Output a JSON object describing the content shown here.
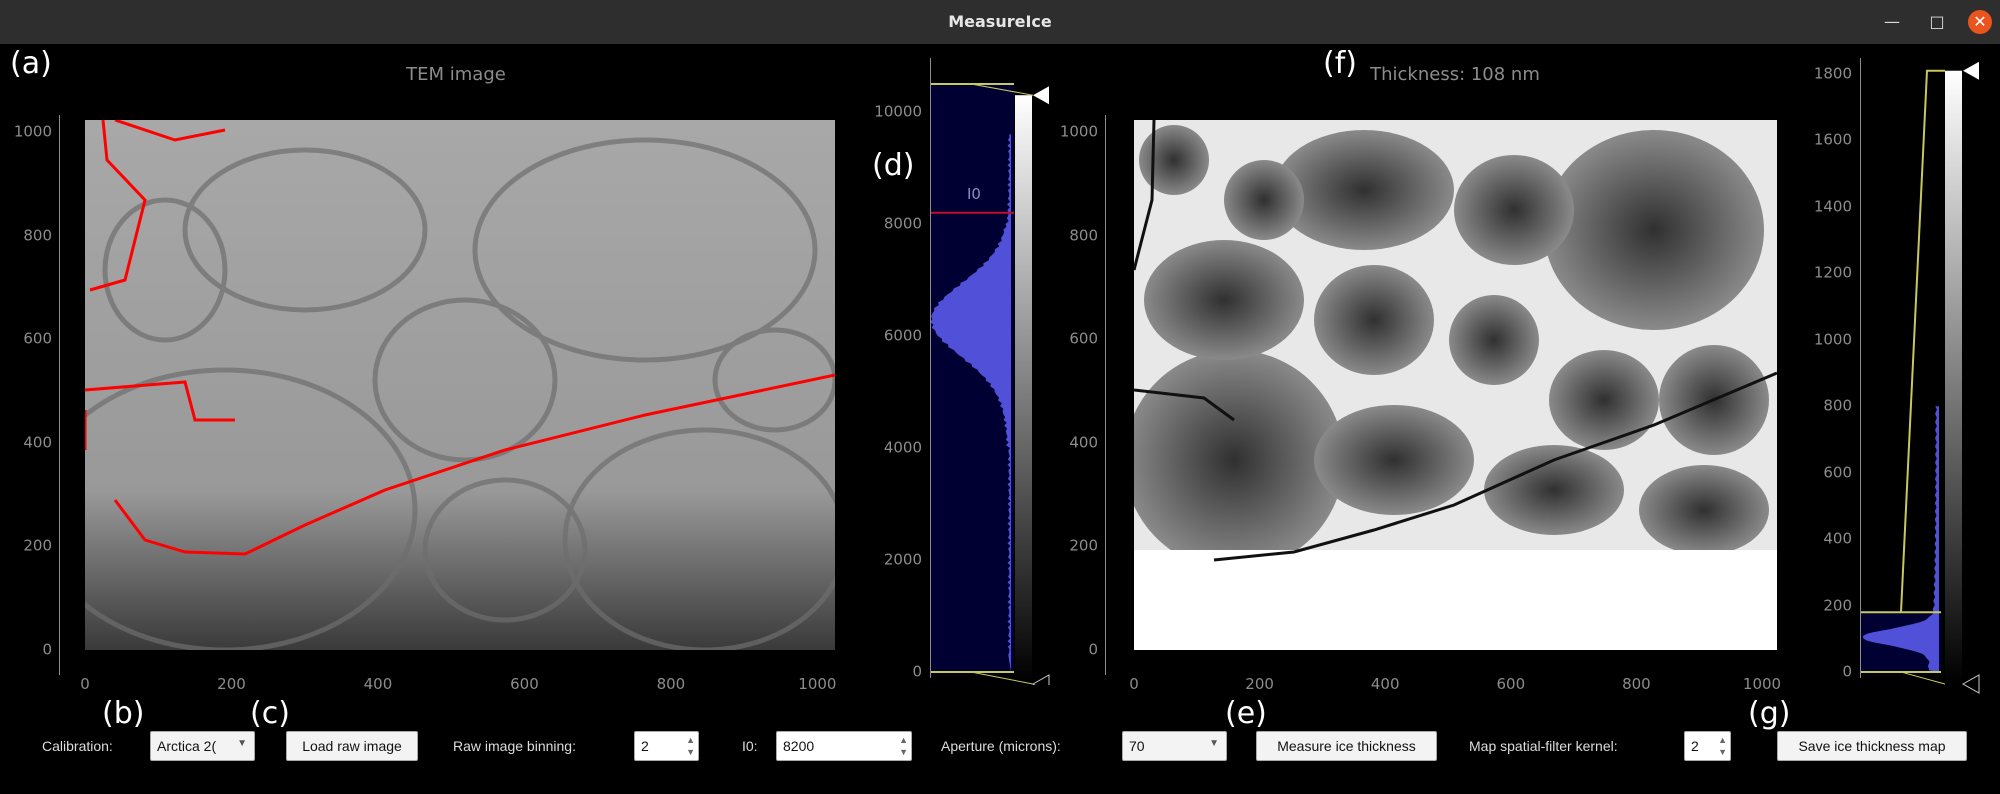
{
  "window": {
    "title": "MeasureIce",
    "minimize_icon": "minimize-icon",
    "maximize_icon": "maximize-icon",
    "close_icon": "close-icon"
  },
  "panel_labels": {
    "a": "(a)",
    "b": "(b)",
    "c": "(c)",
    "d": "(d)",
    "e": "(e)",
    "f": "(f)",
    "g": "(g)"
  },
  "tem_plot": {
    "title": "TEM image",
    "y_ticks": [
      "0",
      "200",
      "400",
      "600",
      "800",
      "1000"
    ],
    "x_ticks": [
      "0",
      "200",
      "400",
      "600",
      "800",
      "1000"
    ]
  },
  "tem_histogram": {
    "y_ticks": [
      "0",
      "2000",
      "4000",
      "6000",
      "8000",
      "10000"
    ],
    "range": [
      0,
      10500
    ],
    "i0_label": "I0",
    "i0_value": 8200,
    "line_color": "#c0102a",
    "fill_color": "#5050d8",
    "bg_color": "#000033"
  },
  "thickness_plot": {
    "title": "Thickness: 108 nm",
    "y_ticks": [
      "0",
      "200",
      "400",
      "600",
      "800",
      "1000"
    ],
    "x_ticks": [
      "0",
      "200",
      "400",
      "600",
      "800",
      "1000"
    ]
  },
  "thickness_histogram": {
    "y_ticks": [
      "0",
      "200",
      "400",
      "600",
      "800",
      "1000",
      "1200",
      "1400",
      "1600",
      "1800"
    ],
    "range": [
      0,
      180
    ],
    "max": 1810,
    "fill_color": "#5050d8",
    "handle_color": "#c8c860"
  },
  "controls": {
    "calibration_label": "Calibration:",
    "calibration_value": "Arctica 2(",
    "load_button": "Load raw image",
    "binning_label": "Raw image binning:",
    "binning_value": "2",
    "i0_label": "I0:",
    "i0_value": "8200",
    "aperture_label": "Aperture (microns):",
    "aperture_value": "70",
    "measure_button": "Measure ice thickness",
    "kernel_label": "Map spatial-filter kernel:",
    "kernel_value": "2",
    "save_button": "Save ice thickness map"
  }
}
